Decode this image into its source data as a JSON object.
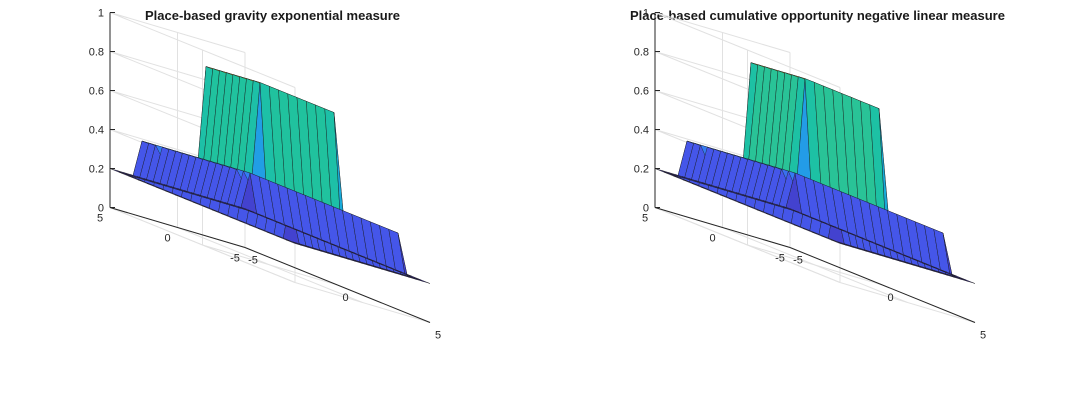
{
  "chart_data": [
    {
      "type": "surface",
      "title": "Place-based gravity exponential measure",
      "xlim": [
        -5,
        5
      ],
      "ylim": [
        -5,
        5
      ],
      "zlim": [
        0,
        1
      ],
      "x_ticks": [
        "-5",
        "0",
        "5"
      ],
      "y_ticks": [
        "-5",
        "0",
        "5"
      ],
      "z_ticks": [
        "0",
        "0.2",
        "0.4",
        "0.6",
        "0.8",
        "1"
      ],
      "grid": true,
      "colormap": "parula",
      "base_level": 0.2,
      "mid_plateau_level": 0.4,
      "top_plateau_level": 0.9,
      "wall_dip_level": 0.25,
      "plateau_notch": 0.8,
      "mid_half_extent": 4,
      "top_half_extent": 2
    },
    {
      "type": "surface",
      "title": "Place-based cumulative opportunity negative linear measure",
      "xlim": [
        -5,
        5
      ],
      "ylim": [
        -5,
        5
      ],
      "zlim": [
        0,
        1
      ],
      "x_ticks": [
        "-5",
        "0",
        "5"
      ],
      "y_ticks": [
        "-5",
        "0",
        "5"
      ],
      "z_ticks": [
        "0",
        "0.2",
        "0.4",
        "0.6",
        "0.8",
        "1"
      ],
      "grid": true,
      "colormap": "parula",
      "base_level": 0.2,
      "mid_plateau_level": 0.4,
      "top_plateau_level": 0.92,
      "wall_dip_level": 0.22,
      "plateau_notch": 0.82,
      "mid_half_extent": 4,
      "top_half_extent": 2
    }
  ]
}
